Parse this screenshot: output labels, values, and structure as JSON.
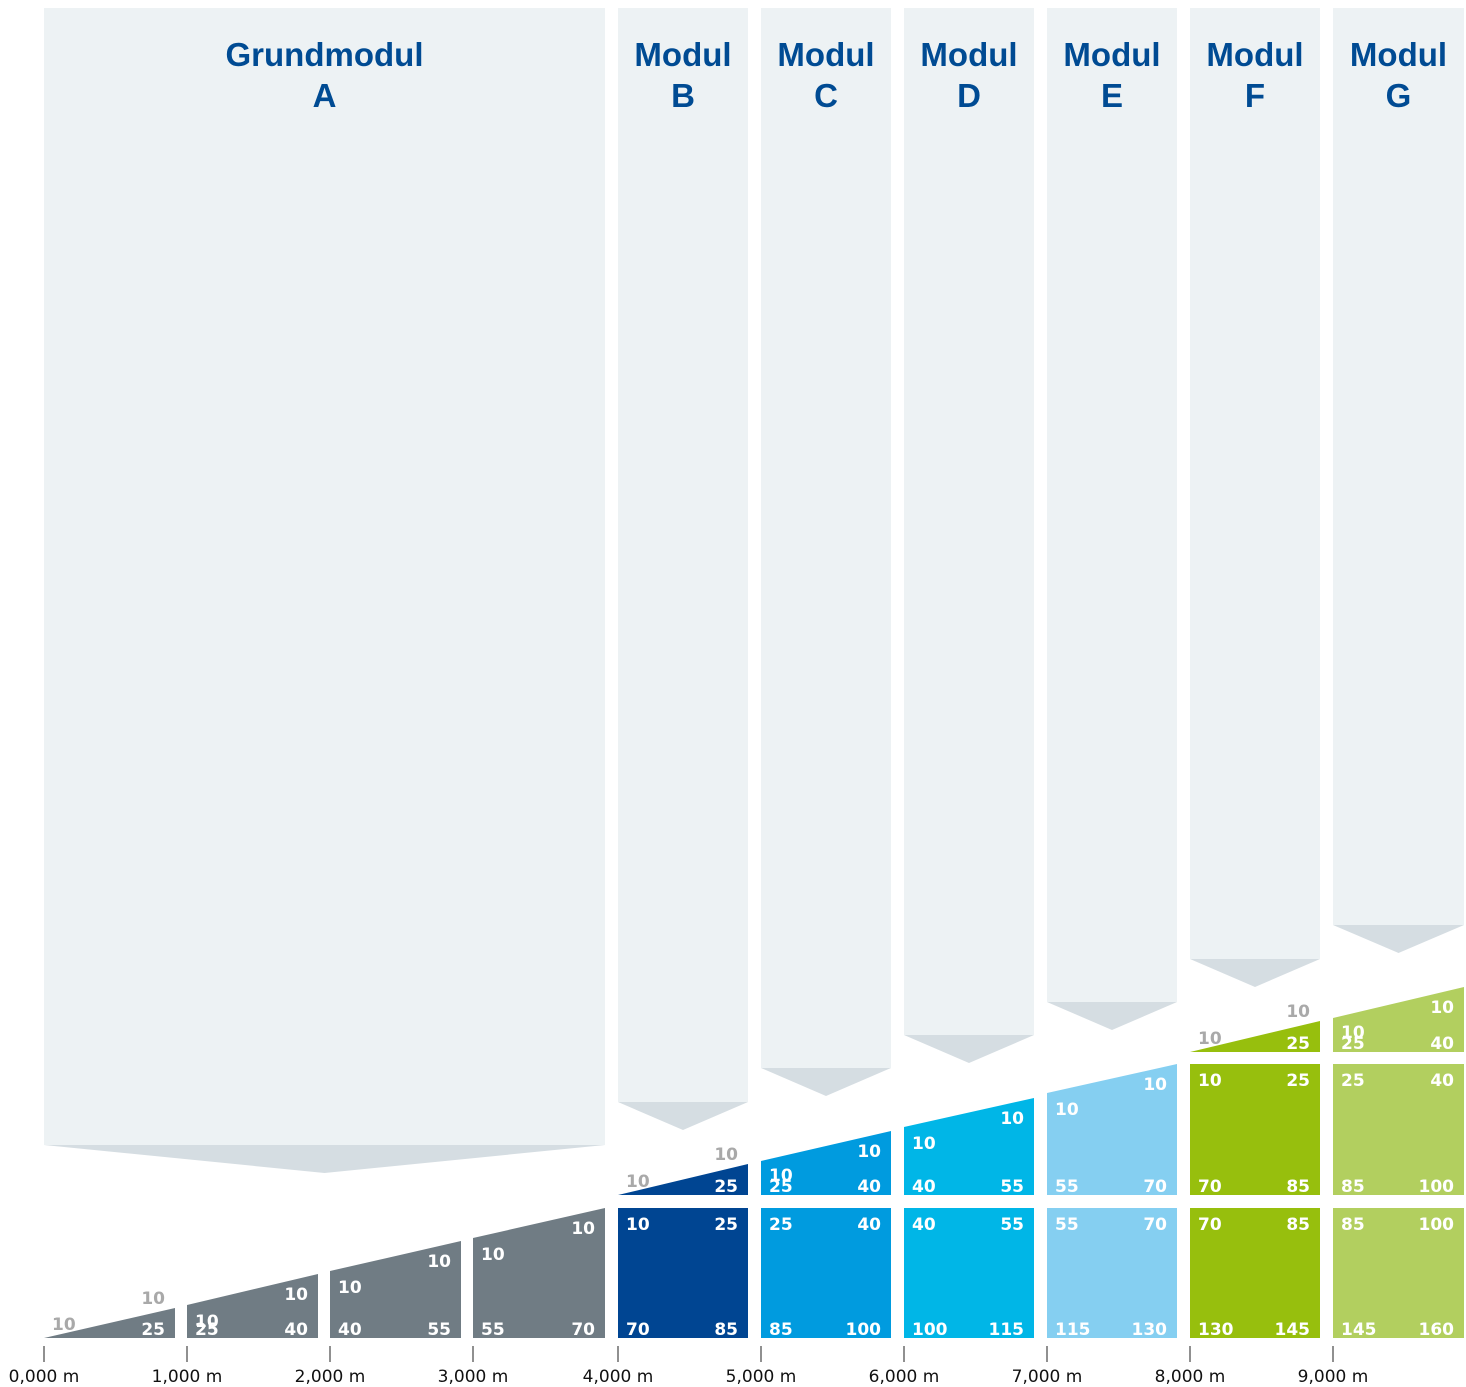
{
  "colors": {
    "column_bg": "#edf2f4",
    "arrow": "#d5dde2",
    "title": "#004b93",
    "label_white": "#ffffff",
    "label_grey": "#a9a9a9",
    "axis": "#222222"
  },
  "modules": [
    {
      "title_line1": "Grundmodul",
      "title_line2": "A",
      "color": "#707c84"
    },
    {
      "title_line1": "Modul",
      "title_line2": "B",
      "color": "#004592"
    },
    {
      "title_line1": "Modul",
      "title_line2": "C",
      "color": "#009bdf"
    },
    {
      "title_line1": "Modul",
      "title_line2": "D",
      "color": "#00b6e7"
    },
    {
      "title_line1": "Modul",
      "title_line2": "E",
      "color": "#85cff1"
    },
    {
      "title_line1": "Modul",
      "title_line2": "F",
      "color": "#97bf0d"
    },
    {
      "title_line1": "Modul",
      "title_line2": "G",
      "color": "#b2cf5f"
    }
  ],
  "axis_ticks": [
    "0,000 m",
    "1,000 m",
    "2,000 m",
    "3,000 m",
    "4,000 m",
    "5,000 m",
    "6,000 m",
    "7,000 m",
    "8,000 m",
    "9,000 m"
  ],
  "grundmodul_blocks": [
    {
      "top_label": "10",
      "right_label": "10",
      "bl": "",
      "br": "25"
    },
    {
      "top_label": "10",
      "right_label": "10",
      "bl": "25",
      "br": "40"
    },
    {
      "top_label": "10",
      "right_label": "10",
      "bl": "40",
      "br": "55"
    },
    {
      "top_label": "10",
      "right_label": "10",
      "bl": "55",
      "br": "70"
    }
  ],
  "module_labels": [
    {
      "wedge": {
        "tl": "10",
        "tr": "10",
        "bl": "",
        "br": "25"
      },
      "upper": null,
      "lower": {
        "tl": "10",
        "tr": "25",
        "bl": "70",
        "br": "85"
      }
    },
    {
      "wedge": {
        "tl": "10",
        "tr": "10",
        "bl": "25",
        "br": "40"
      },
      "upper": null,
      "lower": {
        "tl": "25",
        "tr": "40",
        "bl": "85",
        "br": "100"
      }
    },
    {
      "wedge": {
        "tl": "10",
        "tr": "10",
        "bl": "40",
        "br": "55"
      },
      "upper": null,
      "lower": {
        "tl": "40",
        "tr": "55",
        "bl": "100",
        "br": "115"
      }
    },
    {
      "wedge": {
        "tl": "10",
        "tr": "10",
        "bl": "55",
        "br": "70"
      },
      "upper": null,
      "lower": {
        "tl": "55",
        "tr": "70",
        "bl": "115",
        "br": "130"
      }
    },
    {
      "wedge": {
        "tl": "10",
        "tr": "10",
        "bl": "",
        "br": "25"
      },
      "upper": {
        "tl": "10",
        "tr": "25",
        "bl": "70",
        "br": "85"
      },
      "lower": {
        "tl": "70",
        "tr": "85",
        "bl": "130",
        "br": "145"
      }
    },
    {
      "wedge": {
        "tl": "10",
        "tr": "10",
        "bl": "25",
        "br": "40"
      },
      "upper": {
        "tl": "25",
        "tr": "40",
        "bl": "85",
        "br": "100"
      },
      "lower": {
        "tl": "85",
        "tr": "100",
        "bl": "145",
        "br": "160"
      }
    }
  ]
}
